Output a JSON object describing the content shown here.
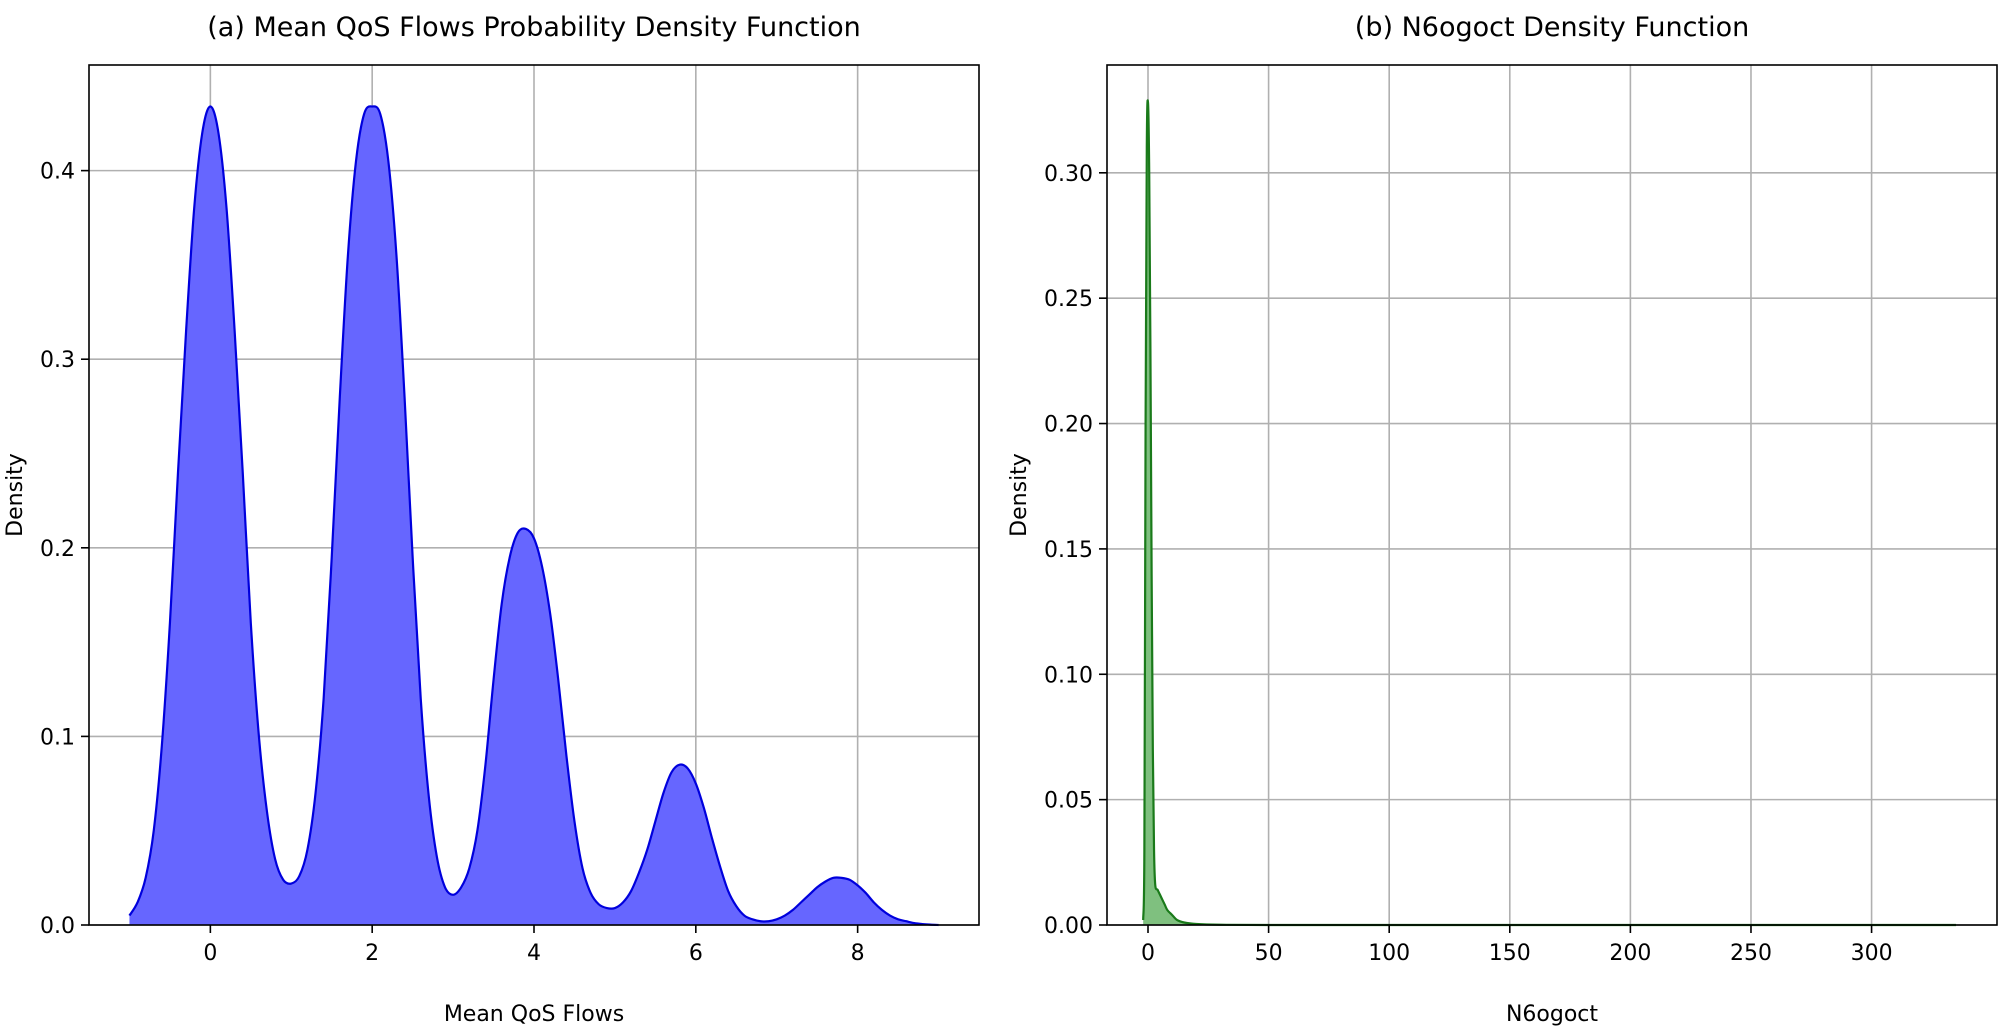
{
  "chart_data": [
    {
      "type": "area",
      "title": "(a) Mean QoS Flows Probability Density Function",
      "xlabel": "Mean QoS Flows",
      "ylabel": "Density",
      "xlim": [
        -1.5,
        9.5
      ],
      "ylim": [
        0,
        0.456
      ],
      "xticks": [
        0,
        2,
        4,
        6,
        8
      ],
      "xtick_labels": [
        "0",
        "2",
        "4",
        "6",
        "8"
      ],
      "yticks": [
        0.0,
        0.1,
        0.2,
        0.3,
        0.4
      ],
      "ytick_labels": [
        "0.0",
        "0.1",
        "0.2",
        "0.3",
        "0.4"
      ],
      "grid": true,
      "fill_color": "#6666ff",
      "line_color": "#0000dd",
      "x": [
        -1.0,
        -0.9,
        -0.8,
        -0.7,
        -0.6,
        -0.5,
        -0.4,
        -0.3,
        -0.2,
        -0.1,
        0.0,
        0.1,
        0.2,
        0.3,
        0.4,
        0.5,
        0.6,
        0.7,
        0.8,
        0.9,
        1.0,
        1.1,
        1.2,
        1.3,
        1.4,
        1.5,
        1.6,
        1.7,
        1.8,
        1.9,
        2.0,
        2.1,
        2.2,
        2.3,
        2.4,
        2.5,
        2.6,
        2.7,
        2.8,
        2.9,
        3.0,
        3.1,
        3.2,
        3.3,
        3.4,
        3.5,
        3.6,
        3.7,
        3.8,
        3.9,
        4.0,
        4.1,
        4.2,
        4.3,
        4.4,
        4.5,
        4.6,
        4.7,
        4.8,
        4.9,
        5.0,
        5.1,
        5.2,
        5.3,
        5.4,
        5.5,
        5.6,
        5.7,
        5.8,
        5.9,
        6.0,
        6.1,
        6.2,
        6.3,
        6.4,
        6.5,
        6.6,
        6.7,
        6.8,
        6.9,
        7.0,
        7.1,
        7.2,
        7.3,
        7.4,
        7.5,
        7.6,
        7.7,
        7.8,
        7.9,
        8.0,
        8.1,
        8.2,
        8.3,
        8.4,
        8.5,
        8.6,
        8.7,
        8.8,
        8.9,
        9.0
      ],
      "values": [
        0.005,
        0.012,
        0.025,
        0.05,
        0.095,
        0.16,
        0.24,
        0.315,
        0.38,
        0.42,
        0.434,
        0.42,
        0.38,
        0.315,
        0.24,
        0.16,
        0.1,
        0.06,
        0.035,
        0.024,
        0.022,
        0.026,
        0.04,
        0.07,
        0.12,
        0.195,
        0.28,
        0.355,
        0.405,
        0.43,
        0.434,
        0.43,
        0.405,
        0.355,
        0.28,
        0.195,
        0.12,
        0.068,
        0.036,
        0.02,
        0.016,
        0.02,
        0.03,
        0.05,
        0.085,
        0.13,
        0.17,
        0.195,
        0.208,
        0.21,
        0.205,
        0.19,
        0.165,
        0.13,
        0.09,
        0.055,
        0.03,
        0.017,
        0.011,
        0.009,
        0.009,
        0.012,
        0.018,
        0.028,
        0.04,
        0.055,
        0.07,
        0.081,
        0.085,
        0.083,
        0.075,
        0.062,
        0.046,
        0.031,
        0.018,
        0.01,
        0.005,
        0.003,
        0.002,
        0.002,
        0.003,
        0.005,
        0.008,
        0.012,
        0.016,
        0.02,
        0.023,
        0.025,
        0.025,
        0.024,
        0.021,
        0.017,
        0.012,
        0.008,
        0.005,
        0.003,
        0.002,
        0.001,
        0.0005,
        0.0002,
        0.0
      ]
    },
    {
      "type": "area",
      "title": "(b) N6ogoct Density Function",
      "xlabel": "N6ogoct",
      "ylabel": "Density",
      "xlim": [
        -17,
        352
      ],
      "ylim": [
        0,
        0.343
      ],
      "xticks": [
        0,
        50,
        100,
        150,
        200,
        250,
        300
      ],
      "xtick_labels": [
        "0",
        "50",
        "100",
        "150",
        "200",
        "250",
        "300"
      ],
      "yticks": [
        0.0,
        0.05,
        0.1,
        0.15,
        0.2,
        0.25,
        0.3
      ],
      "ytick_labels": [
        "0.00",
        "0.05",
        "0.10",
        "0.15",
        "0.20",
        "0.25",
        "0.30"
      ],
      "grid": true,
      "fill_color": "#7fc07f",
      "line_color": "#1a7a1a",
      "x": [
        -2.0,
        -1.5,
        -1.0,
        -0.5,
        0.0,
        0.5,
        1.0,
        1.5,
        2.0,
        2.5,
        3.0,
        4.0,
        5.0,
        6.0,
        7.0,
        8.0,
        10.0,
        12.0,
        15.0,
        20.0,
        30.0,
        50.0,
        100.0,
        200.0,
        335.0
      ],
      "values": [
        0.002,
        0.03,
        0.2,
        0.31,
        0.328,
        0.3,
        0.23,
        0.14,
        0.07,
        0.03,
        0.016,
        0.014,
        0.012,
        0.01,
        0.008,
        0.006,
        0.004,
        0.002,
        0.001,
        0.0004,
        0.0001,
        0.0,
        0.0,
        0.0,
        0.0
      ]
    }
  ]
}
